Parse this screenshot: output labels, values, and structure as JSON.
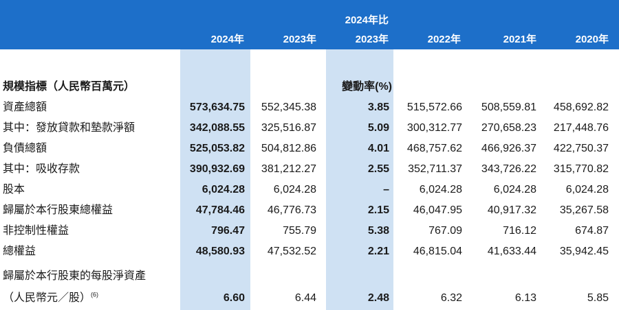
{
  "header": {
    "col1": "2024年",
    "col2": "2023年",
    "col3_top": "2024年比",
    "col3": "2023年",
    "col4": "2022年",
    "col5": "2021年",
    "col6": "2020年"
  },
  "section": {
    "title": "規模指標（人民幣百萬元）",
    "change_label": "變動率(%)"
  },
  "rows": [
    {
      "label": "資產總額",
      "v2024": "573,634.75",
      "v2023": "552,345.38",
      "change": "3.85",
      "v2022": "515,572.66",
      "v2021": "508,559.81",
      "v2020": "458,692.82"
    },
    {
      "label": "其中：發放貸款和墊款淨額",
      "v2024": "342,088.55",
      "v2023": "325,516.87",
      "change": "5.09",
      "v2022": "300,312.77",
      "v2021": "270,658.23",
      "v2020": "217,448.76"
    },
    {
      "label": "負債總額",
      "v2024": "525,053.82",
      "v2023": "504,812.86",
      "change": "4.01",
      "v2022": "468,757.62",
      "v2021": "466,926.37",
      "v2020": "422,750.37"
    },
    {
      "label": "其中：吸收存款",
      "v2024": "390,932.69",
      "v2023": "381,212.27",
      "change": "2.55",
      "v2022": "352,711.37",
      "v2021": "343,726.22",
      "v2020": "315,770.82"
    },
    {
      "label": "股本",
      "v2024": "6,024.28",
      "v2023": "6,024.28",
      "change": "–",
      "v2022": "6,024.28",
      "v2021": "6,024.28",
      "v2020": "6,024.28"
    },
    {
      "label": "歸屬於本行股東總權益",
      "v2024": "47,784.46",
      "v2023": "46,776.73",
      "change": "2.15",
      "v2022": "46,047.95",
      "v2021": "40,917.32",
      "v2020": "35,267.58"
    },
    {
      "label": "非控制性權益",
      "v2024": "796.47",
      "v2023": "755.79",
      "change": "5.38",
      "v2022": "767.09",
      "v2021": "716.12",
      "v2020": "674.87"
    },
    {
      "label": "總權益",
      "v2024": "48,580.93",
      "v2023": "47,532.52",
      "change": "2.21",
      "v2022": "46,815.04",
      "v2021": "41,633.44",
      "v2020": "35,942.45"
    }
  ],
  "last_row": {
    "label_line1": "歸屬於本行股東的每股淨資產",
    "label_line2": "（人民幣元／股）",
    "footnote": "(6)",
    "v2024": "6.60",
    "v2023": "6.44",
    "change": "2.48",
    "v2022": "6.32",
    "v2021": "6.13",
    "v2020": "5.85"
  }
}
